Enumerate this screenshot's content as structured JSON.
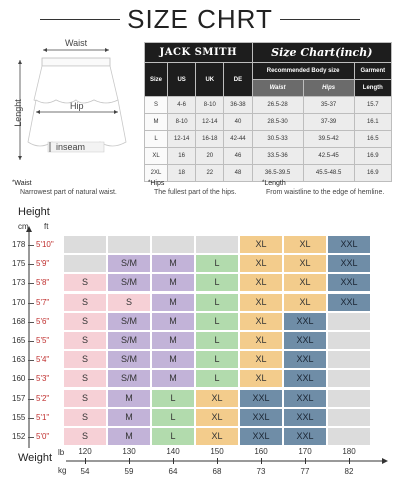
{
  "title": "SIZE CHRT",
  "diagram": {
    "waist_label": "Waist",
    "length_label": "Lenght",
    "hip_label": "Hip",
    "inseam_label": "inseam"
  },
  "table": {
    "brand": "JACK SMITH",
    "chart_title": "Size Chart(inch)",
    "headers": [
      "Size",
      "US",
      "UK",
      "DE",
      "Recommended Body size",
      "Garment"
    ],
    "subheaders": [
      "Waist",
      "Hips",
      "Length"
    ],
    "rows": [
      {
        "size": "S",
        "us": "4-6",
        "uk": "8-10",
        "de": "36-38",
        "waist": "26.5-28",
        "hips": "35-37",
        "length": "15.7"
      },
      {
        "size": "M",
        "us": "8-10",
        "uk": "12-14",
        "de": "40",
        "waist": "28.5-30",
        "hips": "37-39",
        "length": "16.1"
      },
      {
        "size": "L",
        "us": "12-14",
        "uk": "16-18",
        "de": "42-44",
        "waist": "30.5-33",
        "hips": "39.5-42",
        "length": "16.5"
      },
      {
        "size": "XL",
        "us": "16",
        "uk": "20",
        "de": "46",
        "waist": "33.5-36",
        "hips": "42.5-45",
        "length": "16.9"
      },
      {
        "size": "2XL",
        "us": "18",
        "uk": "22",
        "de": "48",
        "waist": "36.5-39.5",
        "hips": "45.5-48.5",
        "length": "16.9"
      }
    ]
  },
  "notes": [
    {
      "term": "Waist",
      "desc": "Narrowest part of natural waist."
    },
    {
      "term": "Hips",
      "desc": "The fullest part of the hips."
    },
    {
      "term": "Length",
      "desc": "From waistline to the edge of hemline."
    }
  ],
  "grid": {
    "height_label": "Height",
    "cm_unit": "cm",
    "ft_unit": "ft",
    "weight_label": "Weight",
    "lb_unit": "lb",
    "kg_unit": "kg",
    "heights_cm": [
      "178",
      "175",
      "173",
      "170",
      "168",
      "165",
      "163",
      "160",
      "157",
      "155",
      "152"
    ],
    "heights_ft": [
      "5'10\"",
      "5'9\"",
      "5'8\"",
      "5'7\"",
      "5'6\"",
      "5'5\"",
      "5'4\"",
      "5'3\"",
      "5'2\"",
      "5'1\"",
      "5'0\""
    ],
    "weights_lb": [
      "120",
      "130",
      "140",
      "150",
      "160",
      "170",
      "180"
    ],
    "weights_kg": [
      "54",
      "59",
      "64",
      "68",
      "73",
      "77",
      "82"
    ],
    "rows": [
      [
        "",
        "",
        "",
        "",
        "XL",
        "XL",
        "XXL"
      ],
      [
        "",
        "S/M",
        "M",
        "L",
        "XL",
        "XL",
        "XXL"
      ],
      [
        "S",
        "S/M",
        "M",
        "L",
        "XL",
        "XL",
        "XXL"
      ],
      [
        "S",
        "S",
        "M",
        "L",
        "XL",
        "XL",
        "XXL"
      ],
      [
        "S",
        "S/M",
        "M",
        "L",
        "XL",
        "XXL",
        ""
      ],
      [
        "S",
        "S/M",
        "M",
        "L",
        "XL",
        "XXL",
        ""
      ],
      [
        "S",
        "S/M",
        "M",
        "L",
        "XL",
        "XXL",
        ""
      ],
      [
        "S",
        "S/M",
        "M",
        "L",
        "XL",
        "XXL",
        ""
      ],
      [
        "S",
        "M",
        "L",
        "XL",
        "XXL",
        "XXL",
        ""
      ],
      [
        "S",
        "M",
        "L",
        "XL",
        "XXL",
        "XXL",
        ""
      ],
      [
        "S",
        "M",
        "L",
        "XL",
        "XXL",
        "XXL",
        ""
      ]
    ],
    "size_colors": {
      "S": "#f6d0d6",
      "S/M": "#c2b3d8",
      "M": "#c2b3d8",
      "L": "#b2dbad",
      "XL": "#f3cc8c",
      "XXL": "#6f8da7",
      "empty": "#dcdcdc"
    },
    "overrides": [
      {
        "row": 3,
        "col": 1,
        "color": "#f6d0d6"
      },
      {
        "row": 8,
        "col": 2,
        "color": "#b2dbad"
      },
      {
        "row": 9,
        "col": 2,
        "color": "#b2dbad"
      },
      {
        "row": 10,
        "col": 2,
        "color": "#b2dbad"
      },
      {
        "row": 8,
        "col": 1,
        "color": "#c2b3d8"
      }
    ]
  }
}
